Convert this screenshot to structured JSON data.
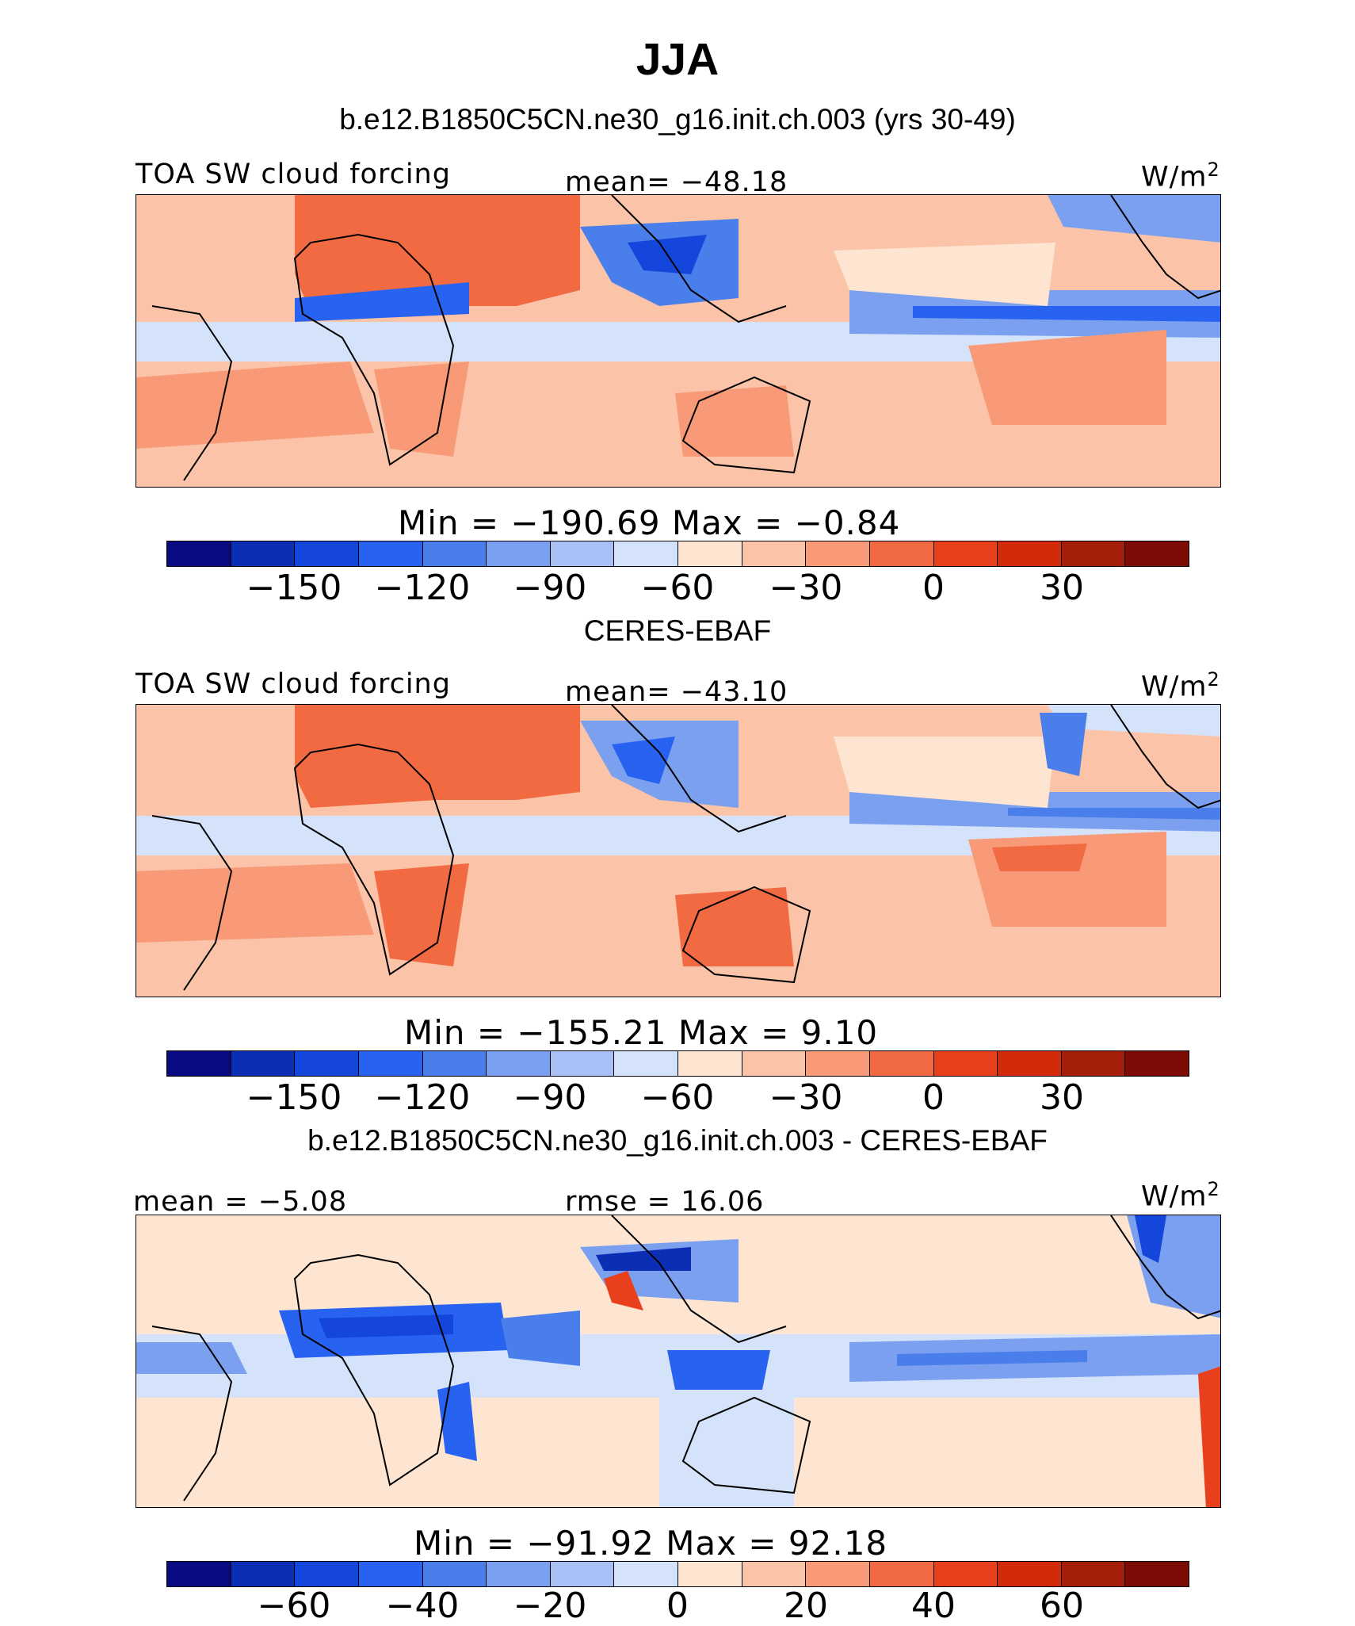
{
  "figure": {
    "season": "JJA",
    "model_case": "b.e12.B1850C5CN.ne30_g16.init.ch.003 (yrs 30-49)",
    "obs_case": "CERES-EBAF",
    "diff_case": "b.e12.B1850C5CN.ne30_g16.init.ch.003 - CERES-EBAF"
  },
  "panels": [
    {
      "variable": "TOA SW cloud forcing",
      "mean_text": "mean= −48.18",
      "units": "W/m",
      "units_sup": "2",
      "minmax_text": "Min  =  −190.69  Max  =   −0.84",
      "colorbar_ticks": [
        "−150",
        "−120",
        "−90",
        "−60",
        "−30",
        "0",
        "30"
      ]
    },
    {
      "variable": "TOA SW cloud forcing",
      "mean_text": "mean= −43.10",
      "units": "W/m",
      "units_sup": "2",
      "minmax_text": "Min  =  −155.21  Max  =     9.10",
      "colorbar_ticks": [
        "−150",
        "−120",
        "−90",
        "−60",
        "−30",
        "0",
        "30"
      ]
    },
    {
      "mean_text": "mean  =   −5.08",
      "rmse_text": "rmse  =   16.06",
      "units": "W/m",
      "units_sup": "2",
      "minmax_text": "Min  =  −91.92  Max  =   92.18",
      "colorbar_ticks": [
        "−60",
        "−40",
        "−20",
        "0",
        "20",
        "40",
        "60"
      ]
    }
  ],
  "chart_data": {
    "type": "heatmap",
    "colorbar_colors": [
      "#0a0a82",
      "#0b2eb5",
      "#1446dc",
      "#2862f0",
      "#4a7eea",
      "#7ca0f0",
      "#a8c0f5",
      "#d5e3fa",
      "#fde5d2",
      "#fbc4a8",
      "#f89a78",
      "#f26a42",
      "#e8401c",
      "#d22a0a",
      "#a51e0a",
      "#7e0a05"
    ],
    "panels": [
      {
        "title": "TOA SW cloud forcing",
        "mean": -48.18,
        "min": -190.69,
        "max": -0.84,
        "units": "W/m2",
        "levels": [
          -150,
          -120,
          -90,
          -60,
          -30,
          0,
          30
        ]
      },
      {
        "title": "TOA SW cloud forcing",
        "mean": -43.1,
        "min": -155.21,
        "max": 9.1,
        "units": "W/m2",
        "levels": [
          -150,
          -120,
          -90,
          -60,
          -30,
          0,
          30
        ]
      },
      {
        "title": "",
        "mean": -5.08,
        "rmse": 16.06,
        "min": -91.92,
        "max": 92.18,
        "units": "W/m2",
        "levels": [
          -60,
          -40,
          -20,
          0,
          20,
          40,
          60
        ]
      }
    ]
  }
}
